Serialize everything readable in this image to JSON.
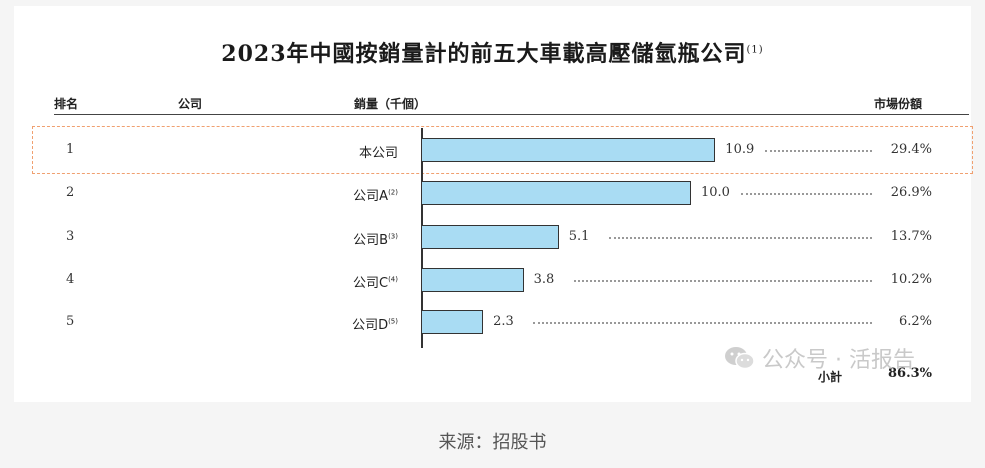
{
  "chart_data": {
    "type": "bar",
    "title": "2023年中國按銷量計的前五大車載高壓儲氫瓶公司",
    "title_note": "(1)",
    "headers": {
      "rank": "排名",
      "company": "公司",
      "sales": "銷量（千個）",
      "share": "市場份額"
    },
    "rows": [
      {
        "rank": "1",
        "company": "本公司",
        "note": "",
        "value": 10.9,
        "value_label": "10.9",
        "share": "29.4%"
      },
      {
        "rank": "2",
        "company": "公司A",
        "note": "(2)",
        "value": 10.0,
        "value_label": "10.0",
        "share": "26.9%"
      },
      {
        "rank": "3",
        "company": "公司B",
        "note": "(3)",
        "value": 5.1,
        "value_label": "5.1",
        "share": "13.7%"
      },
      {
        "rank": "4",
        "company": "公司C",
        "note": "(4)",
        "value": 3.8,
        "value_label": "3.8",
        "share": "10.2%"
      },
      {
        "rank": "5",
        "company": "公司D",
        "note": "(5)",
        "value": 2.3,
        "value_label": "2.3",
        "share": "6.2%"
      }
    ],
    "highlighted_row": "1",
    "subtotal_label": "小計",
    "subtotal_value": "86.3%",
    "bar_color": "#a9dcf3",
    "highlight_color": "#f0a070"
  },
  "watermark": {
    "text": "公众号 · 活报告",
    "icon": "wechat-icon"
  },
  "source": "来源：招股书"
}
